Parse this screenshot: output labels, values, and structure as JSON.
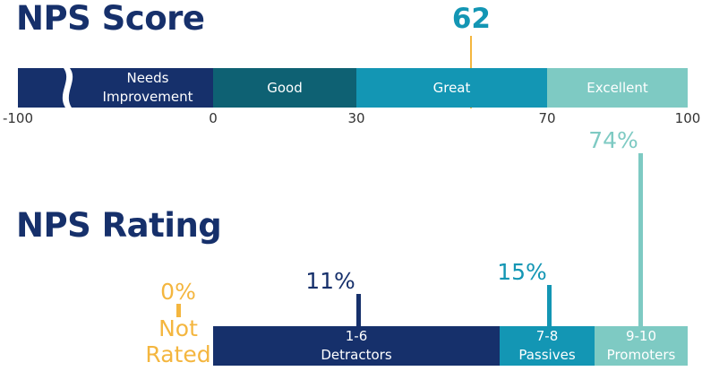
{
  "score_title": "NPS Score",
  "rating_title": "NPS Rating",
  "chart_data": [
    {
      "type": "bar",
      "title": "NPS Score",
      "orientation": "horizontal-range",
      "xlim": [
        -100,
        100
      ],
      "ticks": [
        "-100",
        "0",
        "30",
        "70",
        "100"
      ],
      "ranges": [
        {
          "label": "Needs Improvement",
          "from": -100,
          "to": 0,
          "color": "#16306b"
        },
        {
          "label": "Good",
          "from": 0,
          "to": 30,
          "color": "#0e6173"
        },
        {
          "label": "Great",
          "from": 30,
          "to": 70,
          "color": "#1396b4"
        },
        {
          "label": "Excellent",
          "from": 70,
          "to": 100,
          "color": "#7ecac3"
        }
      ],
      "score": 62,
      "score_label": "62",
      "score_color": "#1396b4",
      "marker_color": "#f4b63f",
      "axis_break": true
    },
    {
      "type": "bar",
      "title": "NPS Rating",
      "categories": [
        {
          "label": "1-6 Detractors",
          "line1": "1-6",
          "line2": "Detractors",
          "value": 11,
          "value_label": "11%",
          "color": "#16306b"
        },
        {
          "label": "7-8 Passives",
          "line1": "7-8",
          "line2": "Passives",
          "value": 15,
          "value_label": "15%",
          "color": "#1396b4"
        },
        {
          "label": "9-10 Promoters",
          "line1": "9-10",
          "line2": "Promoters",
          "value": 74,
          "value_label": "74%",
          "color": "#7ecac3"
        }
      ],
      "not_rated": {
        "line1": "Not",
        "line2": "Rated",
        "value": 0,
        "value_label": "0%",
        "color": "#f4b63f"
      },
      "ylim": [
        0,
        74
      ]
    }
  ]
}
